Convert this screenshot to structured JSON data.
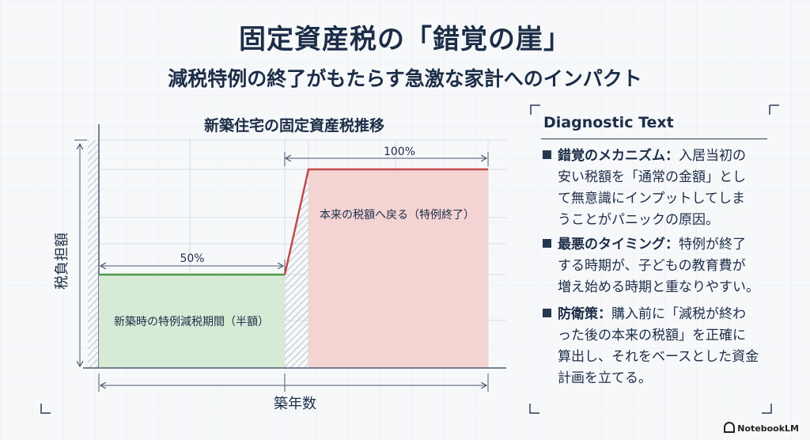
{
  "header": {
    "title": "固定資産税の「錯覚の崖」",
    "subtitle": "減税特例の終了がもたらす急激な家計へのインパクト"
  },
  "diagram": {
    "title": "新築住宅の固定資産税推移",
    "y_axis_label": "税負担額",
    "x_axis_label": "築年数",
    "phase_low": {
      "percent_label": "50%",
      "description": "新築時の特例減税期間（半額）"
    },
    "phase_high": {
      "percent_label": "100%",
      "description": "本来の税額へ戻る（特例終了）"
    },
    "colors": {
      "low_fill": "#d7ead5",
      "low_line": "#4f9a4a",
      "high_fill": "#f4d3d3",
      "high_line": "#c24a4a"
    }
  },
  "panel": {
    "title": "Diagnostic Text",
    "items": [
      {
        "head": "錯覚のメカニズム：",
        "lines": [
          "入居当初の",
          "安い税額を「通常の金額」とし",
          "て無意識にインプットしてしま",
          "うことがパニックの原因。"
        ]
      },
      {
        "head": "最悪のタイミング：",
        "lines": [
          "特例が終了",
          "する時期が、子どもの教育費が",
          "増え始める時期と重なりやすい。"
        ]
      },
      {
        "head": "防衛策：",
        "lines": [
          "購入前に「減税が終わ",
          "った後の本来の税額」を正確に",
          "算出し、それをベースとした資金",
          "計画を立てる。"
        ]
      }
    ]
  },
  "footer": {
    "brand": "NotebookLM"
  }
}
